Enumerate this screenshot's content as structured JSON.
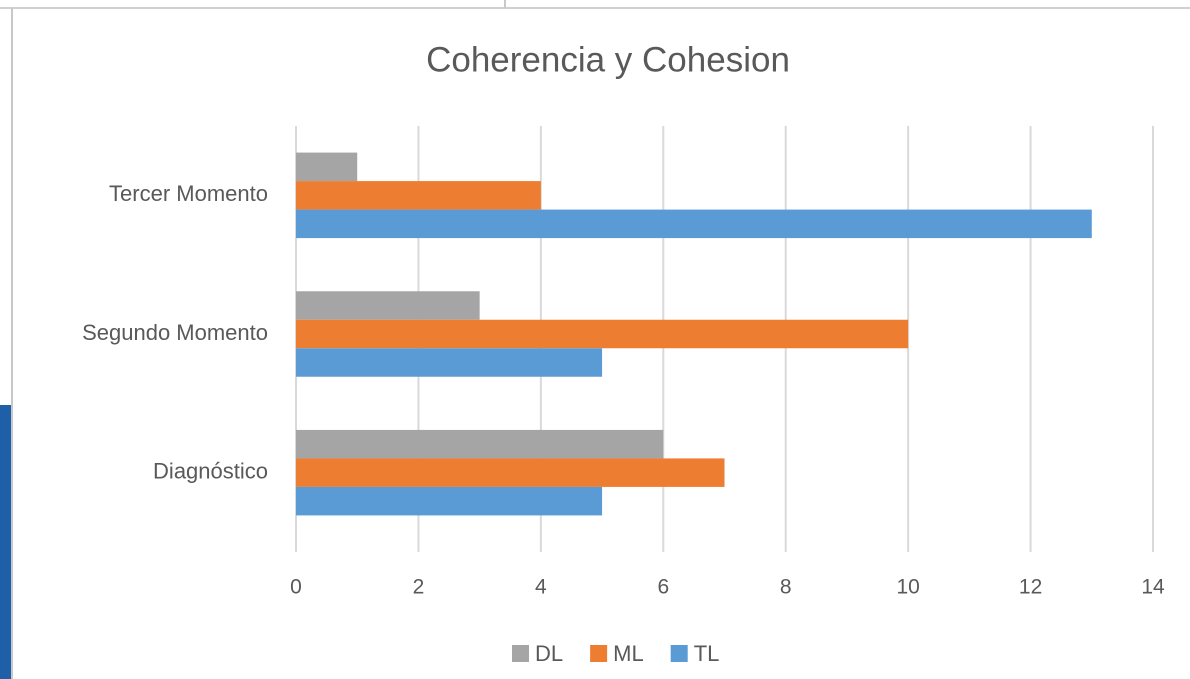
{
  "chart_data": {
    "type": "bar",
    "orientation": "horizontal",
    "title": "Coherencia y Cohesion",
    "categories": [
      "Diagnóstico",
      "Segundo Momento",
      "Tercer Momento"
    ],
    "series": [
      {
        "name": "DL",
        "color": "#a5a5a5",
        "values": [
          6,
          3,
          1
        ]
      },
      {
        "name": "ML",
        "color": "#ed7d31",
        "values": [
          7,
          10,
          4
        ]
      },
      {
        "name": "TL",
        "color": "#5b9bd5",
        "values": [
          5,
          5,
          13
        ]
      }
    ],
    "xlim": [
      0,
      14
    ],
    "xticks": [
      0,
      2,
      4,
      6,
      8,
      10,
      12,
      14
    ],
    "grid": true,
    "legend": "bottom"
  }
}
